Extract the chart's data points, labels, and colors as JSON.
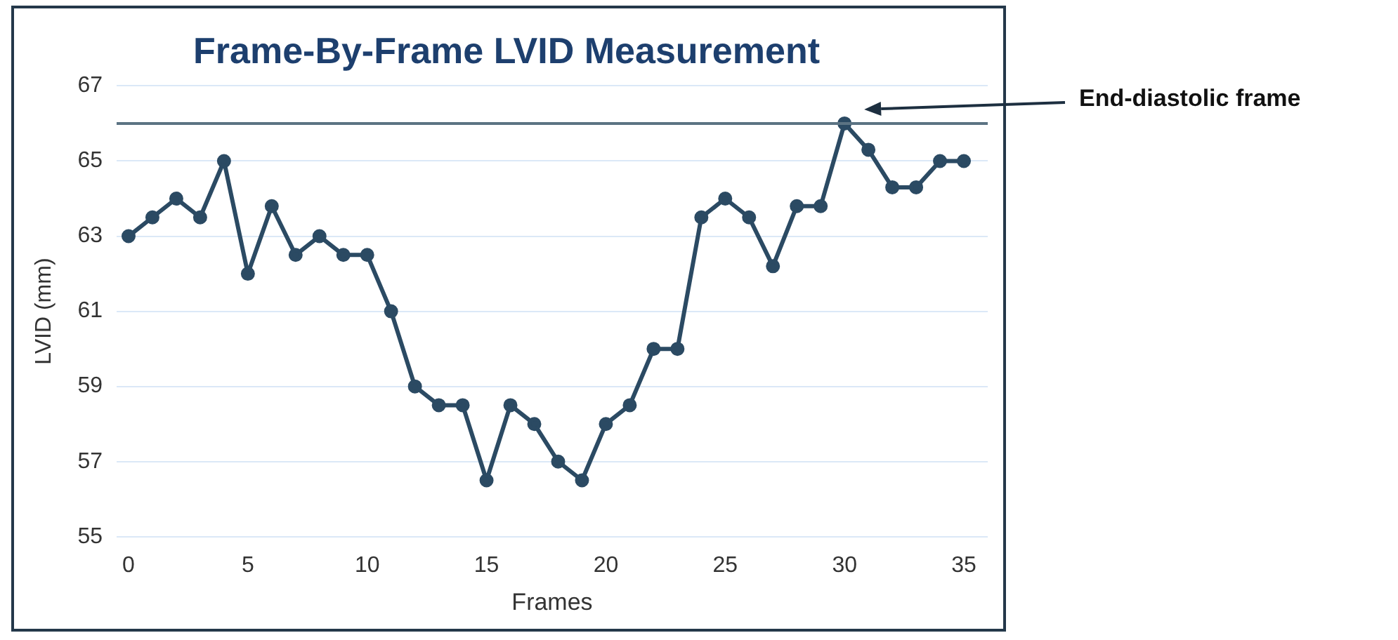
{
  "chart_data": {
    "type": "line",
    "title": "Frame-By-Frame LVID Measurement",
    "xlabel": "Frames",
    "ylabel": "LVID (mm)",
    "x": [
      0,
      1,
      2,
      3,
      4,
      5,
      6,
      7,
      8,
      9,
      10,
      11,
      12,
      13,
      14,
      15,
      16,
      17,
      18,
      19,
      20,
      21,
      22,
      23,
      24,
      25,
      26,
      27,
      28,
      29,
      30,
      31,
      32,
      33,
      34,
      35
    ],
    "series": [
      {
        "color": "#2b4a63",
        "values": [
          63,
          63.5,
          64,
          63.5,
          65,
          62,
          63.8,
          62.5,
          63,
          62.5,
          62.5,
          61,
          59,
          58.5,
          58.5,
          56.5,
          58.5,
          58,
          57,
          56.5,
          58,
          58.5,
          60,
          60,
          63.5,
          64,
          63.5,
          62.2,
          63.8,
          63.8,
          66,
          65.3,
          64.3,
          64.3,
          65,
          65
        ]
      }
    ],
    "xlim": [
      -0.5,
      36
    ],
    "xticks": [
      0,
      5,
      10,
      15,
      20,
      25,
      30,
      35
    ],
    "ylim": [
      55,
      67
    ],
    "yticks": [
      55,
      57,
      59,
      61,
      63,
      65,
      67
    ],
    "grid": "y",
    "marker": "circle",
    "line_style": "solid",
    "legend": false,
    "ref_lines": [
      {
        "axis": "y",
        "value": 66,
        "color": "#5b7383"
      }
    ],
    "annotations": [
      "End-diastolic frame"
    ]
  }
}
